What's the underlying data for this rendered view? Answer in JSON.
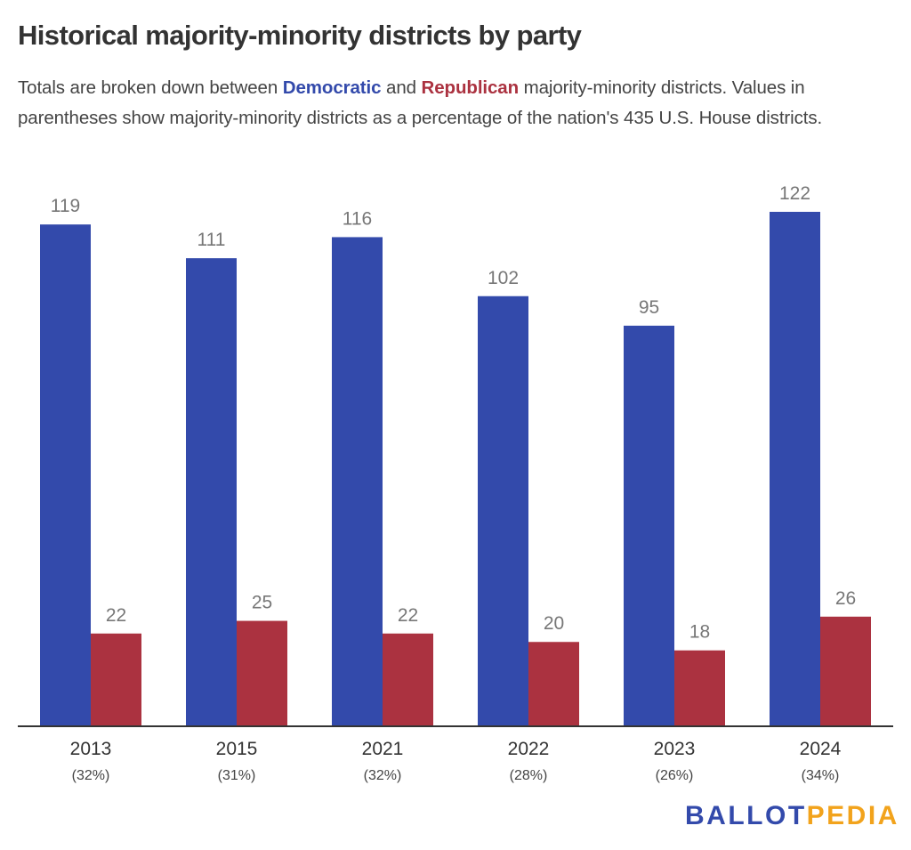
{
  "header": {
    "title": "Historical majority-minority districts by party",
    "subtitle_parts": {
      "part1": "Totals are broken down between ",
      "dem": "Democratic",
      "part2": " and ",
      "rep": "Republican",
      "part3": " majority-minority districts. Values in parentheses show majority-minority districts as a percentage of the nation's 435 U.S. House districts."
    }
  },
  "colors": {
    "democratic": "#334aab",
    "republican": "#ab3240",
    "axis": "#333333",
    "value_label": "#777777"
  },
  "logo": {
    "part1": "BALLOT",
    "part2": "PEDIA"
  },
  "chart_data": {
    "type": "bar",
    "title": "Historical majority-minority districts by party",
    "categories": [
      "2013",
      "2015",
      "2021",
      "2022",
      "2023",
      "2024"
    ],
    "category_sublabels": [
      "(32%)",
      "(31%)",
      "(32%)",
      "(28%)",
      "(26%)",
      "(34%)"
    ],
    "series": [
      {
        "name": "Democratic",
        "color": "#334aab",
        "values": [
          119,
          111,
          116,
          102,
          95,
          122
        ]
      },
      {
        "name": "Republican",
        "color": "#ab3240",
        "values": [
          22,
          25,
          22,
          20,
          18,
          26
        ]
      }
    ],
    "xlabel": "",
    "ylabel": "",
    "ylim": [
      0,
      122
    ],
    "grid": false,
    "legend": "none (colors explained in subtitle)",
    "data_labels": true
  }
}
